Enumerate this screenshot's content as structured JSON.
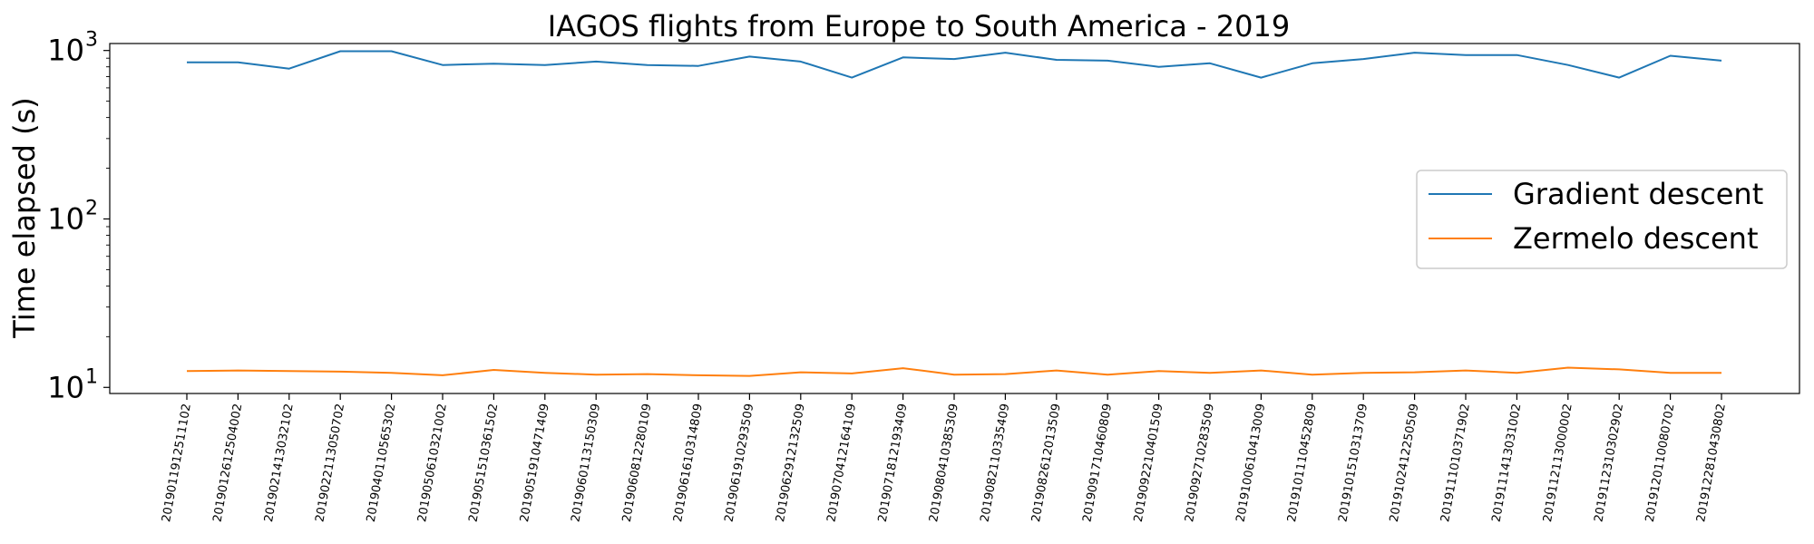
{
  "chart_data": {
    "type": "line",
    "title": "IAGOS flights from Europe to South America - 2019",
    "xlabel": "",
    "ylabel": "Time elapsed (s)",
    "yscale": "log",
    "ylim": [
      9.2,
      1100
    ],
    "y_tick_labels": [
      "10",
      "10",
      "10"
    ],
    "y_tick_exponents": [
      "1",
      "2",
      "3"
    ],
    "y_tick_values": [
      10,
      100,
      1000
    ],
    "grid": false,
    "legend_position": "center-right",
    "categories": [
      "2019011912511102",
      "2019012612504002",
      "2019021413032102",
      "2019022113050702",
      "2019040110565302",
      "2019050610321002",
      "2019051510361502",
      "2019051910471409",
      "2019060113150309",
      "2019060812280109",
      "2019061610314809",
      "2019061910293509",
      "2019062912132509",
      "2019070412164109",
      "2019071812193409",
      "2019080410385309",
      "2019082110335409",
      "2019082612013509",
      "2019091710460809",
      "2019092210401509",
      "2019092710283509",
      "2019100610413009",
      "2019101110452809",
      "2019101510313709",
      "2019102412250509",
      "2019111010371902",
      "2019111413031002",
      "2019112113000002",
      "2019112310302902",
      "2019120110080702",
      "2019122810430802"
    ],
    "series": [
      {
        "name": "Gradient descent",
        "color": "#1f77b4",
        "values": [
          850,
          850,
          780,
          990,
          990,
          820,
          835,
          820,
          860,
          820,
          810,
          920,
          860,
          690,
          910,
          890,
          970,
          880,
          870,
          800,
          840,
          690,
          840,
          890,
          970,
          940,
          940,
          820,
          690,
          930,
          870
        ]
      },
      {
        "name": "Zermelo descent",
        "color": "#ff7f0e",
        "values": [
          12.5,
          12.6,
          12.5,
          12.4,
          12.2,
          11.8,
          12.7,
          12.2,
          11.9,
          12.0,
          11.8,
          11.7,
          12.3,
          12.1,
          13.0,
          11.9,
          12.0,
          12.6,
          11.9,
          12.5,
          12.2,
          12.6,
          11.9,
          12.2,
          12.3,
          12.6,
          12.2,
          13.1,
          12.8,
          12.2,
          12.2
        ]
      }
    ]
  }
}
